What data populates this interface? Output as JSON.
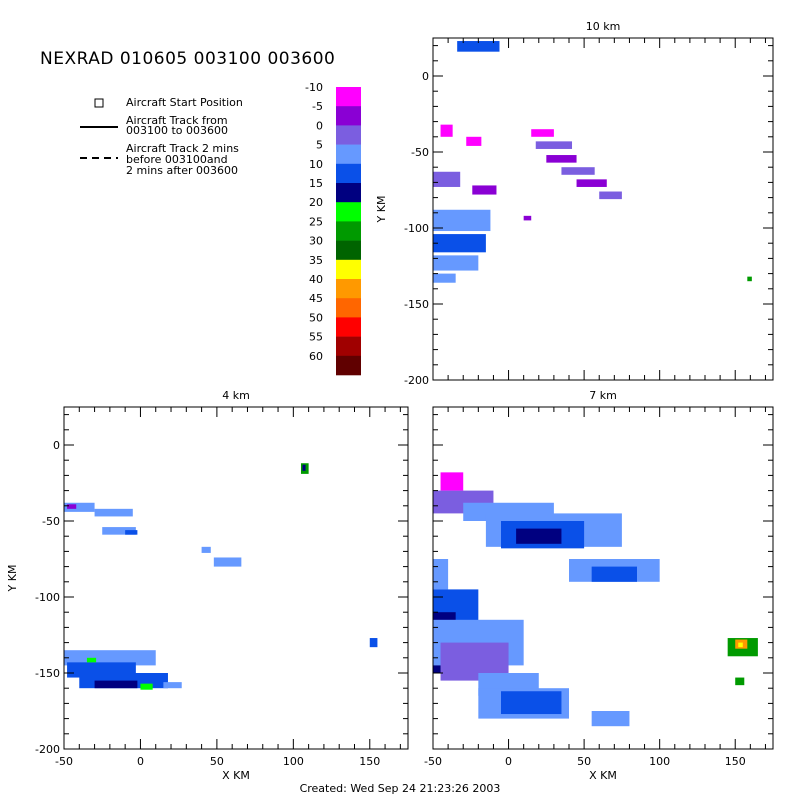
{
  "title": "NEXRAD 010605 003100 003600",
  "legend": {
    "start_label": "Aircraft Start Position",
    "track_label": "Aircraft Track from\n003100 to 003600",
    "track2_label": "Aircraft Track 2 mins\nbefore 003100and\n2 mins after 003600"
  },
  "colorbar": {
    "levels": [
      "-10",
      "-5",
      "0",
      "5",
      "10",
      "15",
      "20",
      "25",
      "30",
      "35",
      "40",
      "45",
      "50",
      "55",
      "60"
    ],
    "colors": [
      "#ff00ff",
      "#8a00d4",
      "#7b5ee0",
      "#6699ff",
      "#0a50e8",
      "#000080",
      "#00ff00",
      "#009a00",
      "#006400",
      "#ffff00",
      "#ff9900",
      "#ff6600",
      "#ff0000",
      "#a00000",
      "#600000"
    ]
  },
  "footer": "Created: Wed Sep 24 21:23:26 2003",
  "chart_data": [
    {
      "type": "heatmap",
      "title": "10 km",
      "xlabel": "",
      "ylabel": "Y KM",
      "xlim": [
        -50,
        175
      ],
      "ylim": [
        -200,
        25
      ],
      "xticks": [],
      "yticks": [
        "0",
        "-50",
        "-100",
        "-150",
        "-200"
      ],
      "echoes": [
        {
          "x": -34,
          "y": 23,
          "w": 28,
          "h": 7,
          "c": 4
        },
        {
          "x": -45,
          "y": -32,
          "w": 8,
          "h": 8,
          "c": 0
        },
        {
          "x": -28,
          "y": -40,
          "w": 10,
          "h": 6,
          "c": 0
        },
        {
          "x": -50,
          "y": -63,
          "w": 18,
          "h": 10,
          "c": 2
        },
        {
          "x": -50,
          "y": -88,
          "w": 38,
          "h": 14,
          "c": 3
        },
        {
          "x": -50,
          "y": -104,
          "w": 35,
          "h": 12,
          "c": 4
        },
        {
          "x": -50,
          "y": -118,
          "w": 30,
          "h": 10,
          "c": 3
        },
        {
          "x": -50,
          "y": -130,
          "w": 15,
          "h": 6,
          "c": 3
        },
        {
          "x": -24,
          "y": -72,
          "w": 16,
          "h": 6,
          "c": 1
        },
        {
          "x": 15,
          "y": -35,
          "w": 15,
          "h": 5,
          "c": 0
        },
        {
          "x": 18,
          "y": -43,
          "w": 24,
          "h": 5,
          "c": 2
        },
        {
          "x": 25,
          "y": -52,
          "w": 20,
          "h": 5,
          "c": 1
        },
        {
          "x": 35,
          "y": -60,
          "w": 22,
          "h": 5,
          "c": 2
        },
        {
          "x": 45,
          "y": -68,
          "w": 20,
          "h": 5,
          "c": 1
        },
        {
          "x": 60,
          "y": -76,
          "w": 15,
          "h": 5,
          "c": 2
        },
        {
          "x": 10,
          "y": -92,
          "w": 5,
          "h": 3,
          "c": 1
        },
        {
          "x": 158,
          "y": -132,
          "w": 3,
          "h": 3,
          "c": 7
        }
      ]
    },
    {
      "type": "heatmap",
      "title": "4 km",
      "xlabel": "X KM",
      "ylabel": "Y KM",
      "xlim": [
        -50,
        175
      ],
      "ylim": [
        -200,
        25
      ],
      "xticks": [
        "-50",
        "0",
        "50",
        "100",
        "150"
      ],
      "yticks": [
        "0",
        "-50",
        "-100",
        "-150",
        "-200"
      ],
      "echoes": [
        {
          "x": -50,
          "y": -38,
          "w": 20,
          "h": 6,
          "c": 3
        },
        {
          "x": -48,
          "y": -39,
          "w": 6,
          "h": 3,
          "c": 1
        },
        {
          "x": -30,
          "y": -42,
          "w": 25,
          "h": 5,
          "c": 3
        },
        {
          "x": -25,
          "y": -54,
          "w": 22,
          "h": 5,
          "c": 3
        },
        {
          "x": -10,
          "y": -56,
          "w": 8,
          "h": 3,
          "c": 4
        },
        {
          "x": 40,
          "y": -67,
          "w": 6,
          "h": 4,
          "c": 3
        },
        {
          "x": 48,
          "y": -74,
          "w": 18,
          "h": 6,
          "c": 3
        },
        {
          "x": 105,
          "y": -12,
          "w": 5,
          "h": 7,
          "c": 7
        },
        {
          "x": 106,
          "y": -13,
          "w": 2,
          "h": 4,
          "c": 5
        },
        {
          "x": 150,
          "y": -127,
          "w": 5,
          "h": 6,
          "c": 4
        },
        {
          "x": -50,
          "y": -135,
          "w": 60,
          "h": 10,
          "c": 3
        },
        {
          "x": -48,
          "y": -143,
          "w": 45,
          "h": 10,
          "c": 4
        },
        {
          "x": -40,
          "y": -150,
          "w": 58,
          "h": 10,
          "c": 4
        },
        {
          "x": -30,
          "y": -155,
          "w": 28,
          "h": 5,
          "c": 5
        },
        {
          "x": -35,
          "y": -140,
          "w": 6,
          "h": 3,
          "c": 6
        },
        {
          "x": 0,
          "y": -157,
          "w": 8,
          "h": 4,
          "c": 6
        },
        {
          "x": 15,
          "y": -156,
          "w": 12,
          "h": 4,
          "c": 3
        }
      ]
    },
    {
      "type": "heatmap",
      "title": "7 km",
      "xlabel": "X KM",
      "ylabel": "",
      "xlim": [
        -50,
        175
      ],
      "ylim": [
        -200,
        25
      ],
      "xticks": [
        "-50",
        "0",
        "50",
        "100",
        "150"
      ],
      "yticks": [],
      "echoes": [
        {
          "x": -45,
          "y": -18,
          "w": 15,
          "h": 12,
          "c": 0
        },
        {
          "x": -50,
          "y": -30,
          "w": 40,
          "h": 15,
          "c": 2
        },
        {
          "x": -30,
          "y": -38,
          "w": 60,
          "h": 12,
          "c": 3
        },
        {
          "x": -15,
          "y": -45,
          "w": 90,
          "h": 22,
          "c": 3
        },
        {
          "x": -5,
          "y": -50,
          "w": 55,
          "h": 18,
          "c": 4
        },
        {
          "x": 5,
          "y": -55,
          "w": 30,
          "h": 10,
          "c": 5
        },
        {
          "x": 40,
          "y": -75,
          "w": 60,
          "h": 15,
          "c": 3
        },
        {
          "x": 55,
          "y": -80,
          "w": 30,
          "h": 10,
          "c": 4
        },
        {
          "x": -50,
          "y": -75,
          "w": 10,
          "h": 20,
          "c": 3
        },
        {
          "x": -50,
          "y": -95,
          "w": 30,
          "h": 45,
          "c": 4
        },
        {
          "x": -50,
          "y": -110,
          "w": 15,
          "h": 40,
          "c": 5
        },
        {
          "x": -50,
          "y": -115,
          "w": 60,
          "h": 30,
          "c": 3
        },
        {
          "x": -45,
          "y": -130,
          "w": 45,
          "h": 25,
          "c": 2
        },
        {
          "x": -20,
          "y": -150,
          "w": 40,
          "h": 15,
          "c": 3
        },
        {
          "x": -20,
          "y": -160,
          "w": 60,
          "h": 20,
          "c": 3
        },
        {
          "x": -5,
          "y": -162,
          "w": 40,
          "h": 15,
          "c": 4
        },
        {
          "x": 55,
          "y": -175,
          "w": 25,
          "h": 10,
          "c": 3
        },
        {
          "x": 145,
          "y": -127,
          "w": 20,
          "h": 12,
          "c": 7
        },
        {
          "x": 150,
          "y": -128,
          "w": 8,
          "h": 6,
          "c": 10
        },
        {
          "x": 152,
          "y": -130,
          "w": 3,
          "h": 3,
          "c": 9
        },
        {
          "x": 150,
          "y": -153,
          "w": 6,
          "h": 5,
          "c": 7
        }
      ]
    }
  ]
}
